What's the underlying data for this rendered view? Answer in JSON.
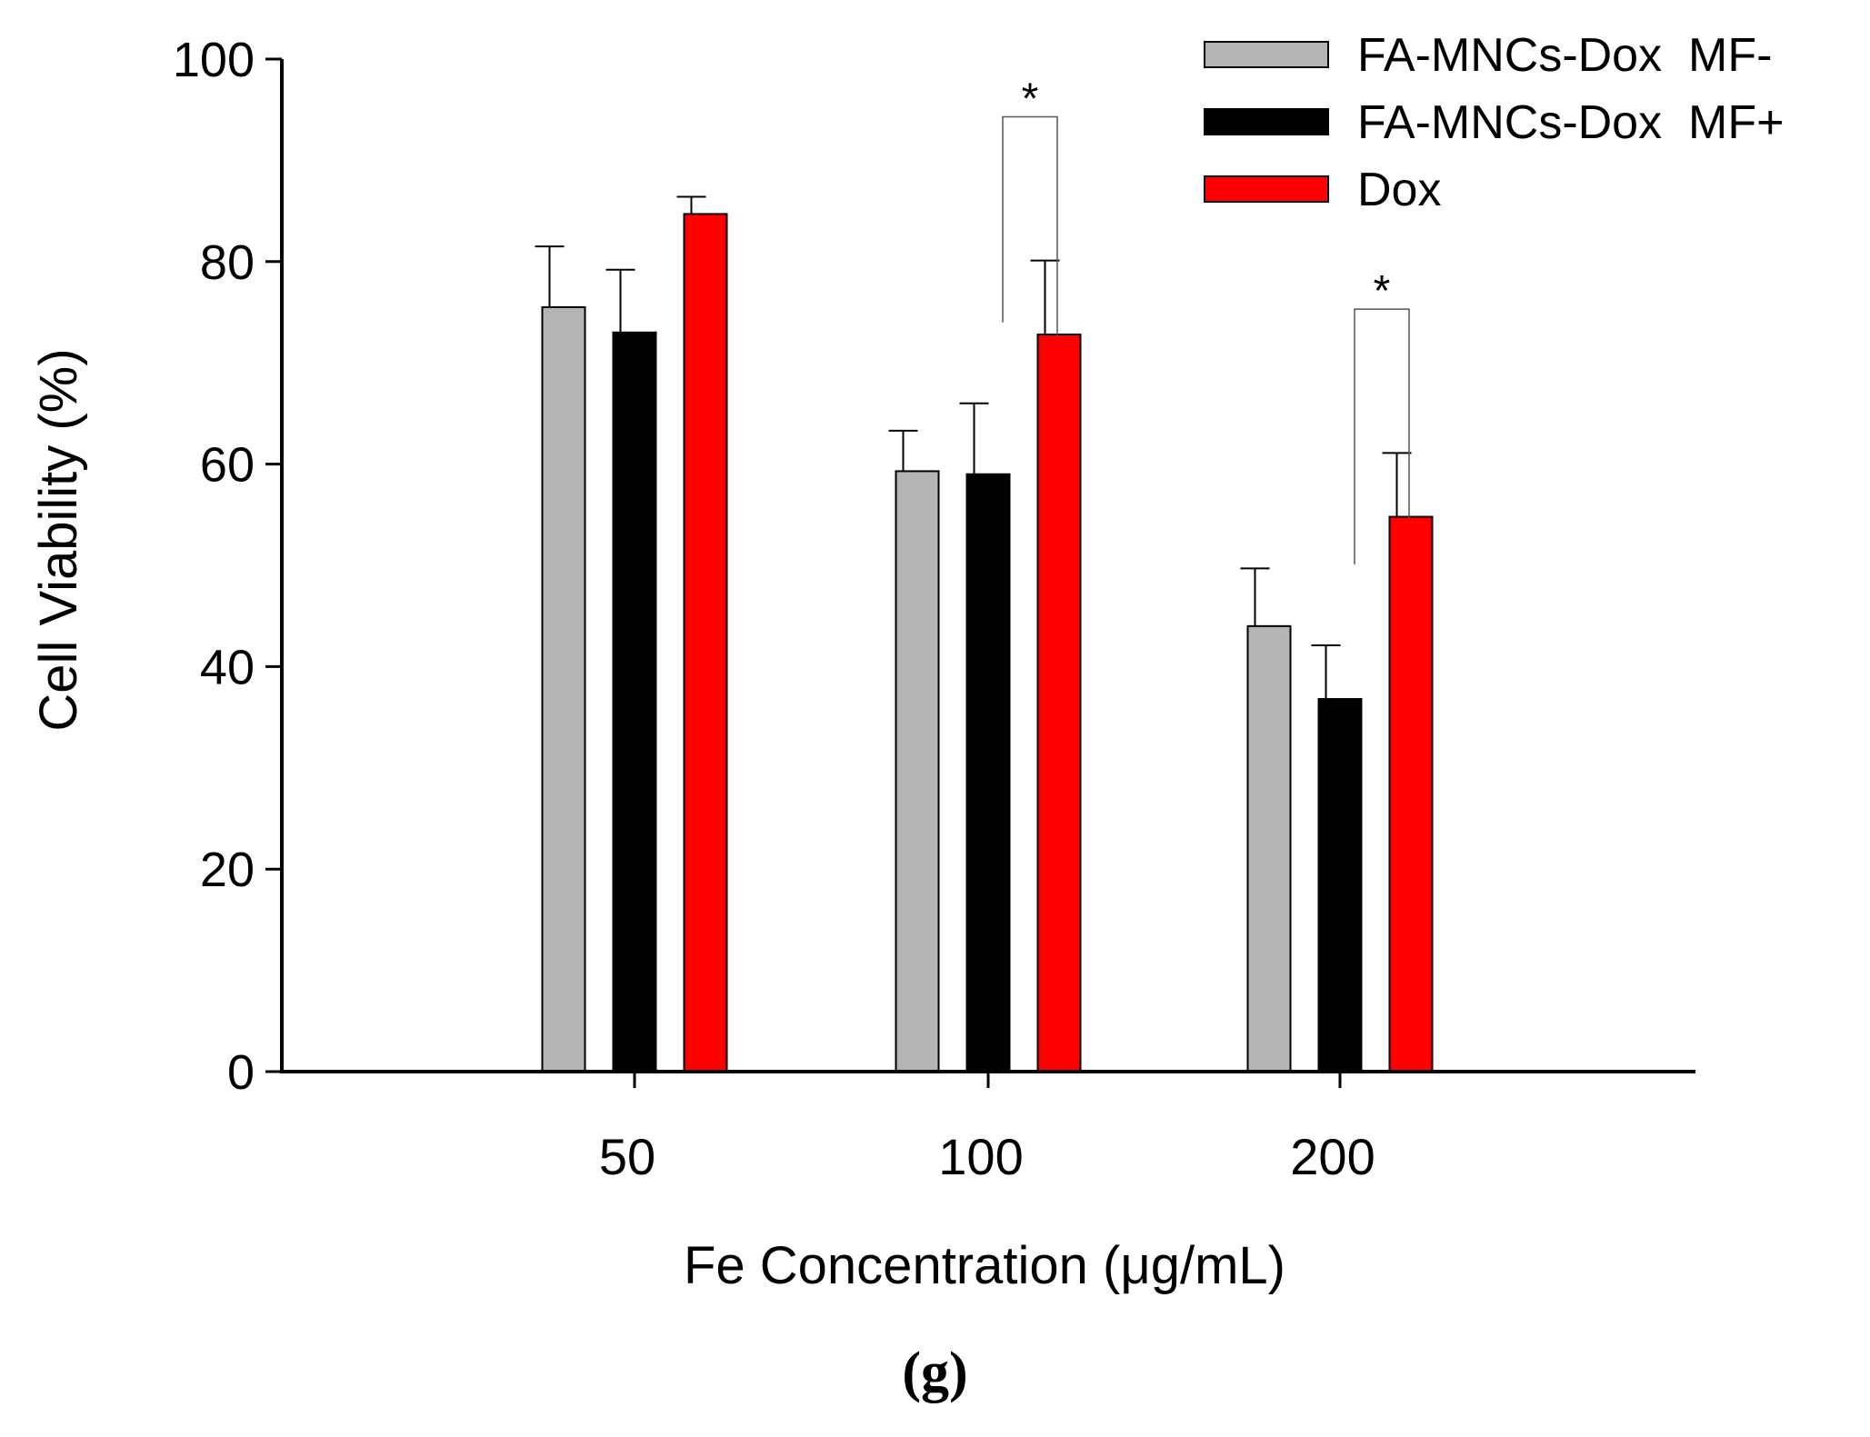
{
  "chart_data": {
    "type": "bar",
    "title": "",
    "xlabel": "Fe Concentration (μg/mL)",
    "ylabel": "Cell Viability (%)",
    "ylim": [
      0,
      100
    ],
    "yticks": [
      0,
      20,
      40,
      60,
      80,
      100
    ],
    "categories": [
      "50",
      "100",
      "200"
    ],
    "series": [
      {
        "name": "FA-MNCs-Dox  MF-",
        "color": "#b4b4b4",
        "values": [
          75.5,
          59.3,
          44.0
        ],
        "errors": [
          6.0,
          4.0,
          5.7
        ]
      },
      {
        "name": "FA-MNCs-Dox  MF+",
        "color": "#000000",
        "values": [
          73.0,
          59.0,
          36.8
        ],
        "errors": [
          6.2,
          7.0,
          5.3
        ]
      },
      {
        "name": "Dox",
        "color": "#ff0000",
        "values": [
          84.7,
          72.8,
          54.8
        ],
        "errors": [
          1.7,
          7.3,
          6.3
        ]
      }
    ],
    "significance": [
      {
        "category": "100",
        "between": [
          "FA-MNCs-Dox  MF+",
          "Dox"
        ],
        "label": "*"
      },
      {
        "category": "200",
        "between": [
          "FA-MNCs-Dox  MF+",
          "Dox"
        ],
        "label": "*"
      }
    ],
    "legend_position": "top-right"
  },
  "panel_label": "(g)"
}
